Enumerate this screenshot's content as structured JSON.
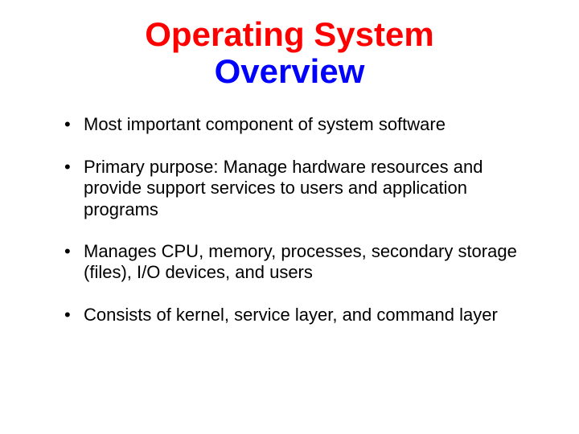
{
  "title": {
    "line1": "Operating System",
    "line2": "Overview",
    "line1_color": "#ff0000",
    "line2_color": "#0000ff",
    "font_size": 42,
    "font_weight": "bold"
  },
  "bullets": [
    "Most important component of system software",
    "Primary purpose: Manage hardware resources and provide support services to users and application programs",
    "Manages CPU, memory, processes, secondary storage (files), I/O devices, and users",
    "Consists of kernel, service layer, and command layer"
  ],
  "body": {
    "font_size": 22,
    "color": "#000000",
    "background_color": "#ffffff",
    "font_family": "Comic Sans MS"
  }
}
